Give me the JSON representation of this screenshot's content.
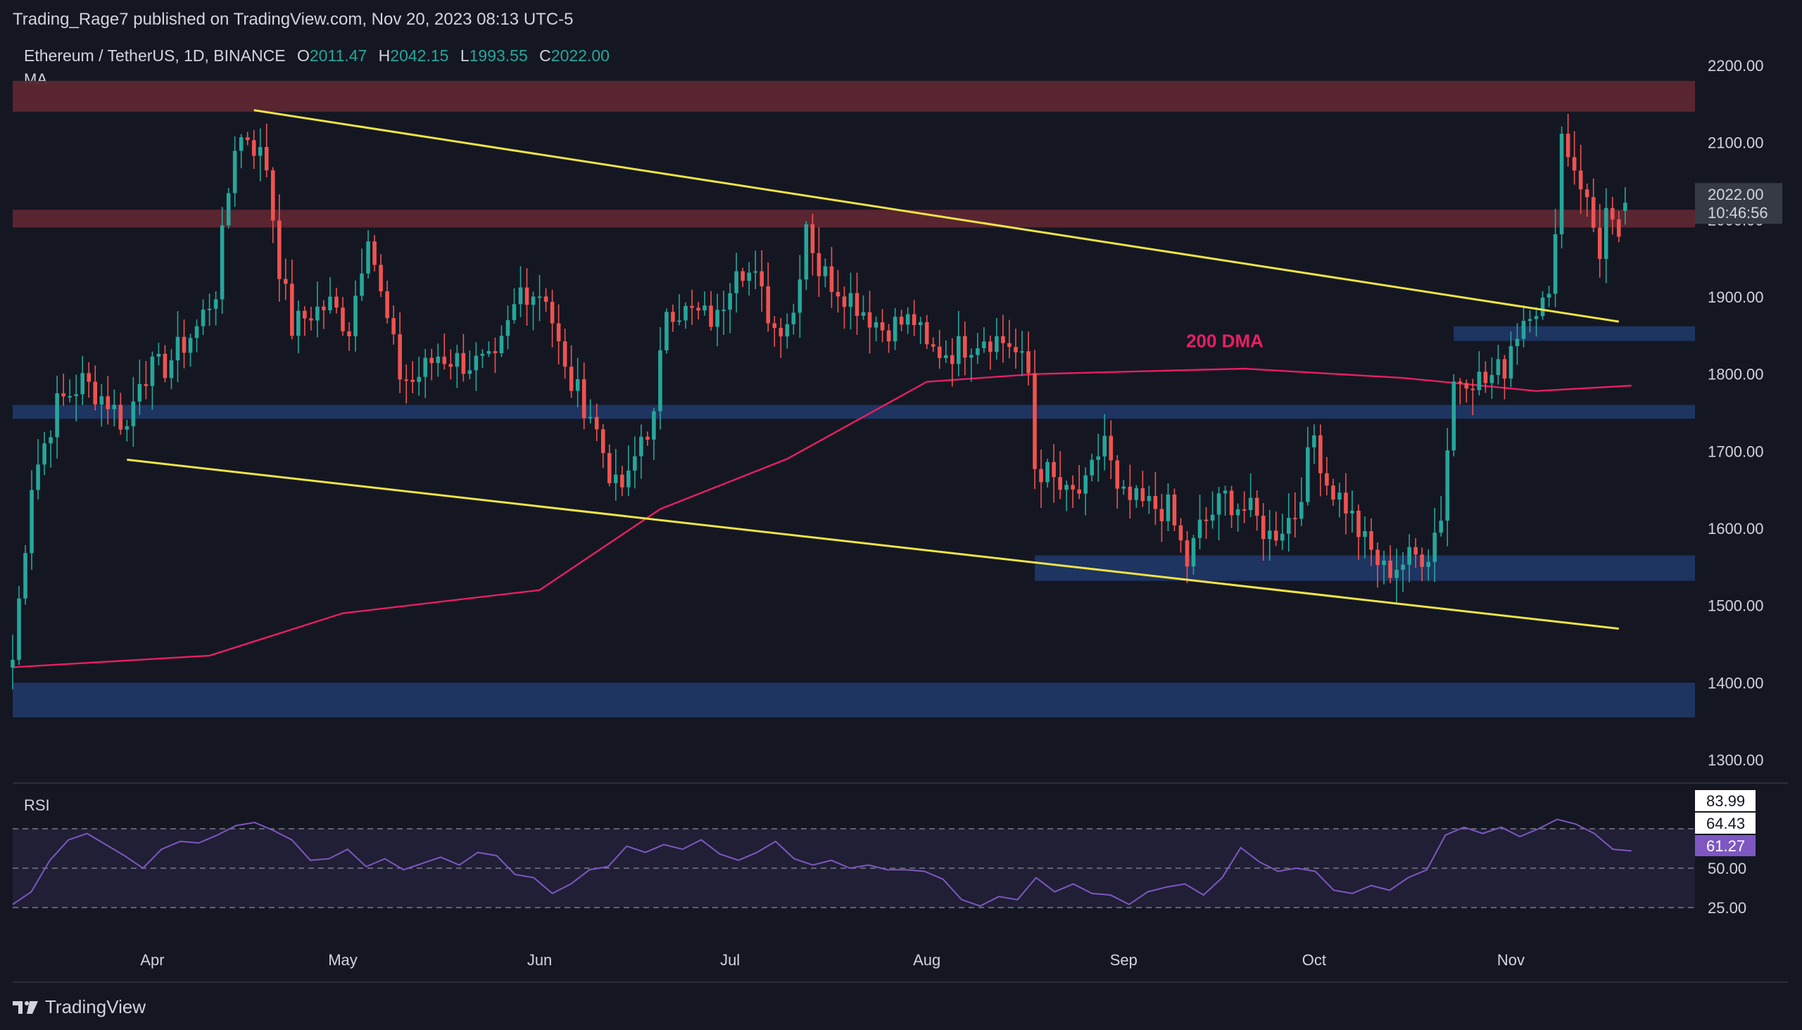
{
  "header": {
    "publisher_line": "Trading_Rage7 published on TradingView.com, Nov 20, 2023 08:13 UTC-5",
    "symbol": "Ethereum / TetherUS, 1D, BINANCE",
    "o_label": "O",
    "o_value": "2011.47",
    "h_label": "H",
    "h_value": "2042.15",
    "l_label": "L",
    "l_value": "1993.55",
    "c_label": "C",
    "c_value": "2022.00",
    "indicator": "MA"
  },
  "rsi_panel": {
    "label": "RSI"
  },
  "footer": {
    "brand": "TradingView"
  },
  "price_badge": {
    "value": "2022.00",
    "countdown": "10:46:56"
  },
  "rsi_badges": {
    "upper": "83.99",
    "mid": "64.43",
    "current": "61.27"
  },
  "colors": {
    "background": "#141722",
    "up": "#26a69a",
    "down": "#ef5350",
    "trendline": "#f0e446",
    "ma": "#e91e63",
    "resistance_zone": "#5c2631",
    "support_zone": "#1f3768",
    "rsi_line": "#7e57c2"
  },
  "chart_data": [
    {
      "type": "candlestick",
      "title": "Ethereum / TetherUS, 1D, BINANCE",
      "ylim": [
        1250,
        2250
      ],
      "y_ticks": [
        "2200.00",
        "2100.00",
        "2000.00",
        "1900.00",
        "1800.00",
        "1700.00",
        "1600.00",
        "1500.00",
        "1400.00",
        "1300.00"
      ],
      "x_tick_labels": [
        "Apr",
        "May",
        "Jun",
        "Jul",
        "Aug",
        "Sep",
        "Oct",
        "Nov"
      ],
      "x_range": [
        "2023-03-10",
        "2023-11-30"
      ],
      "x_ticks": [
        "2023-04-01",
        "2023-05-01",
        "2023-06-01",
        "2023-07-01",
        "2023-08-01",
        "2023-09-01",
        "2023-10-01",
        "2023-11-01"
      ],
      "anchors": [
        [
          "2023-03-10",
          1430
        ],
        [
          "2023-03-13",
          1660
        ],
        [
          "2023-03-17",
          1760
        ],
        [
          "2023-03-21",
          1790
        ],
        [
          "2023-03-25",
          1765
        ],
        [
          "2023-03-28",
          1730
        ],
        [
          "2023-03-30",
          1800
        ],
        [
          "2023-04-03",
          1810
        ],
        [
          "2023-04-08",
          1860
        ],
        [
          "2023-04-11",
          1910
        ],
        [
          "2023-04-14",
          2100
        ],
        [
          "2023-04-16",
          2110
        ],
        [
          "2023-04-19",
          2070
        ],
        [
          "2023-04-21",
          1940
        ],
        [
          "2023-04-23",
          1860
        ],
        [
          "2023-04-26",
          1880
        ],
        [
          "2023-04-29",
          1890
        ],
        [
          "2023-05-02",
          1860
        ],
        [
          "2023-05-05",
          1990
        ],
        [
          "2023-05-07",
          1900
        ],
        [
          "2023-05-10",
          1800
        ],
        [
          "2023-05-12",
          1790
        ],
        [
          "2023-05-16",
          1825
        ],
        [
          "2023-05-20",
          1815
        ],
        [
          "2023-05-25",
          1810
        ],
        [
          "2023-05-29",
          1910
        ],
        [
          "2023-06-02",
          1905
        ],
        [
          "2023-06-05",
          1800
        ],
        [
          "2023-06-09",
          1750
        ],
        [
          "2023-06-13",
          1650
        ],
        [
          "2023-06-15",
          1660
        ],
        [
          "2023-06-17",
          1720
        ],
        [
          "2023-06-19",
          1740
        ],
        [
          "2023-06-21",
          1890
        ],
        [
          "2023-06-24",
          1880
        ],
        [
          "2023-06-29",
          1870
        ],
        [
          "2023-07-02",
          1950
        ],
        [
          "2023-07-05",
          1920
        ],
        [
          "2023-07-08",
          1860
        ],
        [
          "2023-07-11",
          1880
        ],
        [
          "2023-07-13",
          2000
        ],
        [
          "2023-07-15",
          1935
        ],
        [
          "2023-07-20",
          1900
        ],
        [
          "2023-07-25",
          1860
        ],
        [
          "2023-07-30",
          1870
        ],
        [
          "2023-08-01",
          1830
        ],
        [
          "2023-08-05",
          1830
        ],
        [
          "2023-08-10",
          1850
        ],
        [
          "2023-08-14",
          1840
        ],
        [
          "2023-08-17",
          1800
        ],
        [
          "2023-08-18",
          1680
        ],
        [
          "2023-08-20",
          1670
        ],
        [
          "2023-08-23",
          1640
        ],
        [
          "2023-08-26",
          1650
        ],
        [
          "2023-08-29",
          1720
        ],
        [
          "2023-08-31",
          1640
        ],
        [
          "2023-09-04",
          1630
        ],
        [
          "2023-09-08",
          1625
        ],
        [
          "2023-09-11",
          1555
        ],
        [
          "2023-09-13",
          1600
        ],
        [
          "2023-09-17",
          1640
        ],
        [
          "2023-09-21",
          1620
        ],
        [
          "2023-09-24",
          1590
        ],
        [
          "2023-09-28",
          1620
        ],
        [
          "2023-10-01",
          1720
        ],
        [
          "2023-10-03",
          1660
        ],
        [
          "2023-10-06",
          1630
        ],
        [
          "2023-10-09",
          1580
        ],
        [
          "2023-10-12",
          1545
        ],
        [
          "2023-10-16",
          1560
        ],
        [
          "2023-10-19",
          1570
        ],
        [
          "2023-10-21",
          1620
        ],
        [
          "2023-10-23",
          1790
        ],
        [
          "2023-10-25",
          1800
        ],
        [
          "2023-10-28",
          1790
        ],
        [
          "2023-10-31",
          1810
        ],
        [
          "2023-11-01",
          1840
        ],
        [
          "2023-11-04",
          1890
        ],
        [
          "2023-11-07",
          1890
        ],
        [
          "2023-11-09",
          2110
        ],
        [
          "2023-11-12",
          2050
        ],
        [
          "2023-11-15",
          1960
        ],
        [
          "2023-11-16",
          2010
        ],
        [
          "2023-11-18",
          1960
        ],
        [
          "2023-11-20",
          2022
        ]
      ],
      "last_candle": {
        "open": 2011.47,
        "high": 2042.15,
        "low": 1993.55,
        "close": 2022.0
      },
      "ma": {
        "label": "200 DMA",
        "points": [
          [
            "2023-03-10",
            1420
          ],
          [
            "2023-04-10",
            1435
          ],
          [
            "2023-05-01",
            1490
          ],
          [
            "2023-06-01",
            1520
          ],
          [
            "2023-06-20",
            1625
          ],
          [
            "2023-07-10",
            1690
          ],
          [
            "2023-08-01",
            1790
          ],
          [
            "2023-08-18",
            1800
          ],
          [
            "2023-09-20",
            1807
          ],
          [
            "2023-10-15",
            1795
          ],
          [
            "2023-11-05",
            1778
          ],
          [
            "2023-11-20",
            1785
          ]
        ]
      },
      "zones": [
        {
          "kind": "resistance",
          "from": 2140,
          "to": 2180
        },
        {
          "kind": "resistance",
          "from": 1990,
          "to": 2013
        },
        {
          "kind": "support",
          "start": "2023-10-23",
          "from": 1843,
          "to": 1862
        },
        {
          "kind": "support",
          "from": 1742,
          "to": 1760
        },
        {
          "kind": "support",
          "start": "2023-08-18",
          "from": 1532,
          "to": 1565
        },
        {
          "kind": "support",
          "from": 1355,
          "to": 1400
        }
      ],
      "trendlines": [
        {
          "points": [
            [
              "2023-04-17",
              2142
            ],
            [
              "2023-11-18",
              1868
            ]
          ]
        },
        {
          "points": [
            [
              "2023-03-28",
              1689
            ],
            [
              "2023-11-18",
              1470
            ]
          ]
        }
      ]
    },
    {
      "type": "line",
      "title": "RSI",
      "ylim": [
        20,
        90
      ],
      "y_ticks": [
        "50.00",
        "25.00"
      ],
      "bands": [
        75,
        50,
        25
      ],
      "series": [
        {
          "values": [
            [
              0,
              27
            ],
            [
              1,
              35
            ],
            [
              2,
              55
            ],
            [
              3,
              68
            ],
            [
              4,
              72
            ],
            [
              5,
              65
            ],
            [
              6,
              58
            ],
            [
              7,
              50
            ],
            [
              8,
              62
            ],
            [
              9,
              67
            ],
            [
              10,
              66
            ],
            [
              11,
              71
            ],
            [
              12,
              77
            ],
            [
              13,
              79
            ],
            [
              14,
              74
            ],
            [
              15,
              68
            ],
            [
              16,
              55
            ],
            [
              17,
              56
            ],
            [
              18,
              62
            ],
            [
              19,
              51
            ],
            [
              20,
              56
            ],
            [
              21,
              49
            ],
            [
              22,
              53
            ],
            [
              23,
              57
            ],
            [
              24,
              52
            ],
            [
              25,
              60
            ],
            [
              26,
              58
            ],
            [
              27,
              46
            ],
            [
              28,
              44
            ],
            [
              29,
              34
            ],
            [
              30,
              40
            ],
            [
              31,
              49
            ],
            [
              32,
              51
            ],
            [
              33,
              64
            ],
            [
              34,
              60
            ],
            [
              35,
              65
            ],
            [
              36,
              62
            ],
            [
              37,
              68
            ],
            [
              38,
              59
            ],
            [
              39,
              55
            ],
            [
              40,
              60
            ],
            [
              41,
              67
            ],
            [
              42,
              56
            ],
            [
              43,
              52
            ],
            [
              44,
              55
            ],
            [
              45,
              50
            ],
            [
              46,
              52
            ],
            [
              47,
              49
            ],
            [
              48,
              49
            ],
            [
              49,
              48
            ],
            [
              50,
              43
            ],
            [
              51,
              30
            ],
            [
              52,
              26
            ],
            [
              53,
              32
            ],
            [
              54,
              30
            ],
            [
              55,
              44
            ],
            [
              56,
              35
            ],
            [
              57,
              40
            ],
            [
              58,
              34
            ],
            [
              59,
              33
            ],
            [
              60,
              27
            ],
            [
              61,
              35
            ],
            [
              62,
              38
            ],
            [
              63,
              40
            ],
            [
              64,
              33
            ],
            [
              65,
              44
            ],
            [
              66,
              63
            ],
            [
              67,
              54
            ],
            [
              68,
              48
            ],
            [
              69,
              50
            ],
            [
              70,
              48
            ],
            [
              71,
              36
            ],
            [
              72,
              34
            ],
            [
              73,
              39
            ],
            [
              74,
              36
            ],
            [
              75,
              44
            ],
            [
              76,
              49
            ],
            [
              77,
              71
            ],
            [
              78,
              76
            ],
            [
              79,
              72
            ],
            [
              80,
              76
            ],
            [
              81,
              70
            ],
            [
              82,
              75
            ],
            [
              83,
              81
            ],
            [
              84,
              78
            ],
            [
              85,
              72
            ],
            [
              86,
              62
            ],
            [
              87,
              61
            ]
          ]
        }
      ]
    }
  ]
}
